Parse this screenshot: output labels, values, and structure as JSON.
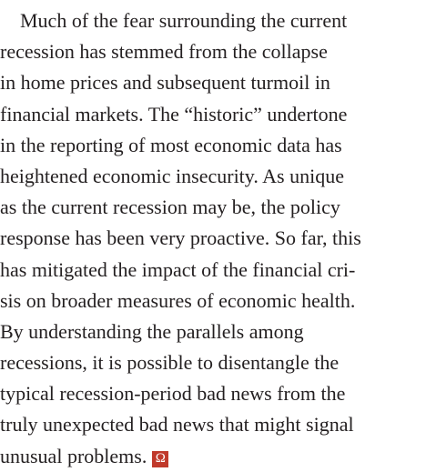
{
  "paragraph": {
    "lines": [
      "Much of the fear surrounding the current",
      "recession has stemmed from the collapse",
      "in home prices and subsequent turmoil in",
      "financial markets. The “historic” undertone",
      "in the reporting of most economic data has",
      "heightened economic insecurity. As unique",
      "as the current recession may be, the policy",
      "response has been very proactive. So far, this",
      "has mitigated the impact of the financial cri-",
      "sis on broader measures of economic health.",
      "By understanding the parallels among",
      "recessions, it is possible to disentangle the",
      "typical recession-period bad news from the",
      "truly unexpected bad news that might signal",
      "unusual problems."
    ],
    "end_mark": "Ω"
  }
}
